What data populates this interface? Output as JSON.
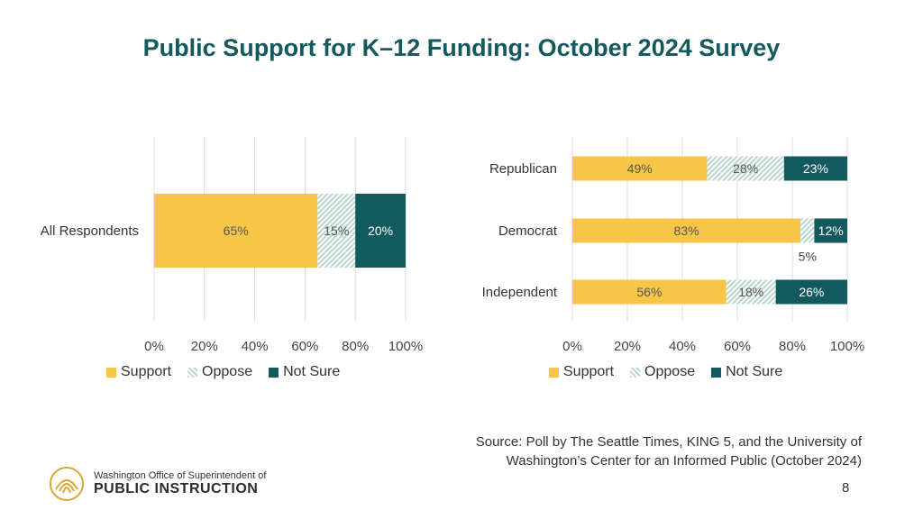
{
  "title": "Public Support for K–12 Funding: October 2024 Survey",
  "colors": {
    "support": "#f7c548",
    "oppose": "#b8d6cc",
    "not_sure": "#125a5e",
    "title": "#125a5e"
  },
  "chart_data": [
    {
      "type": "bar",
      "orientation": "horizontal",
      "stacked": true,
      "categories": [
        "All Respondents"
      ],
      "series": [
        {
          "name": "Support",
          "values": [
            65
          ],
          "labels": [
            "65%"
          ]
        },
        {
          "name": "Oppose",
          "values": [
            15
          ],
          "labels": [
            "15%"
          ]
        },
        {
          "name": "Not Sure",
          "values": [
            20
          ],
          "labels": [
            "20%"
          ]
        }
      ],
      "x_ticks": [
        "0%",
        "20%",
        "40%",
        "60%",
        "80%",
        "100%"
      ],
      "xlim": [
        0,
        100
      ],
      "grid": true,
      "legend_position": "bottom"
    },
    {
      "type": "bar",
      "orientation": "horizontal",
      "stacked": true,
      "categories": [
        "Republican",
        "Democrat",
        "Independent"
      ],
      "series": [
        {
          "name": "Support",
          "values": [
            49,
            83,
            56
          ],
          "labels": [
            "49%",
            "83%",
            "56%"
          ]
        },
        {
          "name": "Oppose",
          "values": [
            28,
            5,
            18
          ],
          "labels": [
            "28%",
            "5%",
            "18%"
          ]
        },
        {
          "name": "Not Sure",
          "values": [
            23,
            12,
            26
          ],
          "labels": [
            "23%",
            "12%",
            "26%"
          ]
        }
      ],
      "x_ticks": [
        "0%",
        "20%",
        "40%",
        "60%",
        "80%",
        "100%"
      ],
      "xlim": [
        0,
        100
      ],
      "grid": true,
      "legend_position": "bottom"
    }
  ],
  "legend": [
    {
      "label": "Support",
      "key": "support"
    },
    {
      "label": "Oppose",
      "key": "oppose"
    },
    {
      "label": "Not Sure",
      "key": "not_sure"
    }
  ],
  "source": {
    "line1": "Source: Poll by The Seattle Times, KING 5, and the University of",
    "line2": "Washington’s Center for an Informed Public (October 2024)"
  },
  "page_number": "8",
  "logo": {
    "line1": "Washington Office of Superintendent of",
    "line2": "PUBLIC INSTRUCTION"
  }
}
